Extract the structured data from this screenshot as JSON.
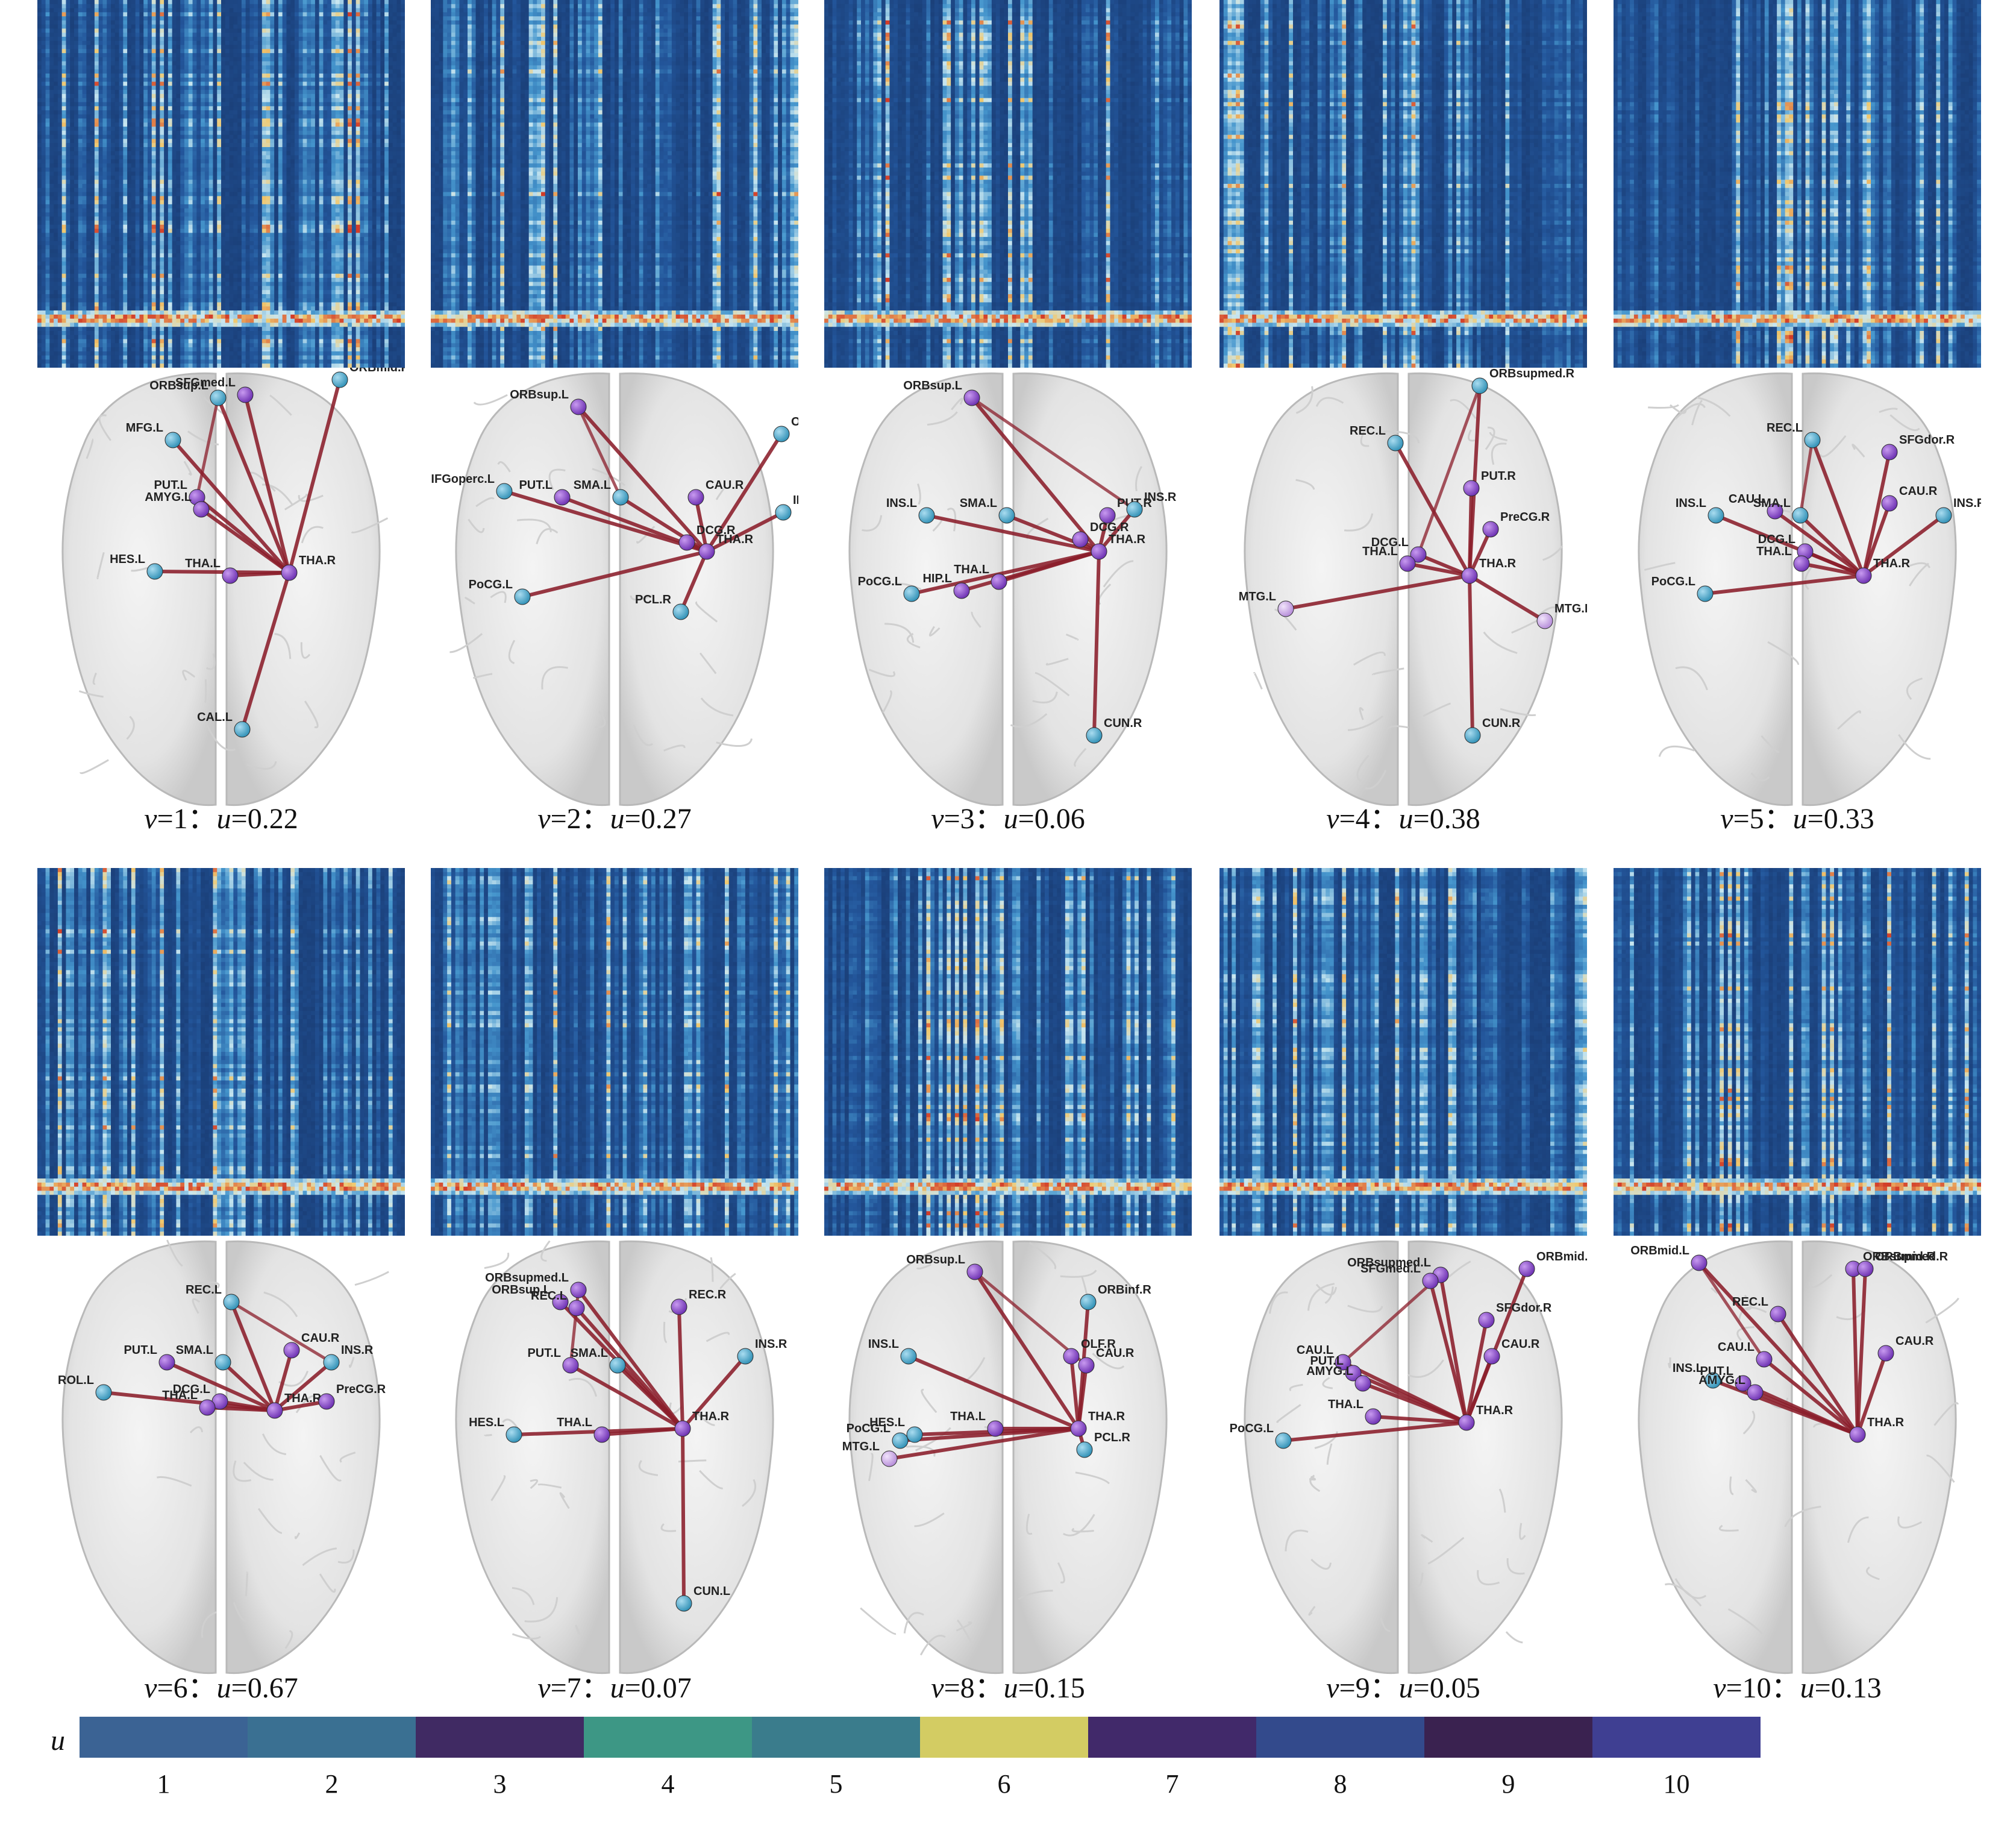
{
  "panels": [
    {
      "id": "v1",
      "caption": {
        "v_symbol": "v",
        "v_value": "=1",
        "separator": "：",
        "u_symbol": "u",
        "u_value": "=0.22"
      },
      "nodes": [
        {
          "label": "ORBsup.L",
          "kind": "blue"
        },
        {
          "label": "SFGmed.L",
          "kind": "purple"
        },
        {
          "label": "ORBmid.R",
          "kind": "blue"
        },
        {
          "label": "MFG.L",
          "kind": "blue"
        },
        {
          "label": "PUT.L",
          "kind": "purple"
        },
        {
          "label": "AMYG.L",
          "kind": "purple"
        },
        {
          "label": "HES.L",
          "kind": "blue"
        },
        {
          "label": "THA.L",
          "kind": "purple"
        },
        {
          "label": "THA.R",
          "kind": "purple"
        },
        {
          "label": "CAL.L",
          "kind": "blue"
        }
      ],
      "hub": "THA.R"
    },
    {
      "id": "v2",
      "caption": {
        "v_symbol": "v",
        "v_value": "=2",
        "separator": "：",
        "u_symbol": "u",
        "u_value": "=0.27"
      },
      "nodes": [
        {
          "label": "ORBsup.L",
          "kind": "purple"
        },
        {
          "label": "ORBinf.R",
          "kind": "blue"
        },
        {
          "label": "IFGoperc.L",
          "kind": "blue"
        },
        {
          "label": "PUT.L",
          "kind": "purple"
        },
        {
          "label": "SMA.L",
          "kind": "blue"
        },
        {
          "label": "CAU.R",
          "kind": "purple"
        },
        {
          "label": "INS.R",
          "kind": "blue"
        },
        {
          "label": "DCG.R",
          "kind": "purple"
        },
        {
          "label": "THA.R",
          "kind": "purple"
        },
        {
          "label": "PoCG.L",
          "kind": "blue"
        },
        {
          "label": "PCL.R",
          "kind": "blue"
        }
      ],
      "hub": "THA.R"
    },
    {
      "id": "v3",
      "caption": {
        "v_symbol": "v",
        "v_value": "=3",
        "separator": "：",
        "u_symbol": "u",
        "u_value": "=0.06"
      },
      "nodes": [
        {
          "label": "ORBsup.L",
          "kind": "purple"
        },
        {
          "label": "INS.L",
          "kind": "blue"
        },
        {
          "label": "SMA.L",
          "kind": "blue"
        },
        {
          "label": "PUT.R",
          "kind": "purple"
        },
        {
          "label": "INS.R",
          "kind": "blue"
        },
        {
          "label": "DCG.R",
          "kind": "purple"
        },
        {
          "label": "THA.R",
          "kind": "purple"
        },
        {
          "label": "PoCG.L",
          "kind": "blue"
        },
        {
          "label": "HIP.L",
          "kind": "purple"
        },
        {
          "label": "THA.L",
          "kind": "purple"
        },
        {
          "label": "CUN.R",
          "kind": "blue"
        }
      ],
      "hub": "THA.R"
    },
    {
      "id": "v4",
      "caption": {
        "v_symbol": "v",
        "v_value": "=4",
        "separator": "：",
        "u_symbol": "u",
        "u_value": "=0.38"
      },
      "nodes": [
        {
          "label": "ORBsupmed.R",
          "kind": "blue"
        },
        {
          "label": "REC.L",
          "kind": "blue"
        },
        {
          "label": "PUT.R",
          "kind": "purple"
        },
        {
          "label": "PreCG.R",
          "kind": "purple"
        },
        {
          "label": "DCG.L",
          "kind": "purple"
        },
        {
          "label": "THA.L",
          "kind": "purple"
        },
        {
          "label": "THA.R",
          "kind": "purple"
        },
        {
          "label": "MTG.L",
          "kind": "lilac"
        },
        {
          "label": "MTG.R",
          "kind": "lilac"
        },
        {
          "label": "CUN.R",
          "kind": "blue"
        }
      ],
      "hub": "THA.R"
    },
    {
      "id": "v5",
      "caption": {
        "v_symbol": "v",
        "v_value": "=5",
        "separator": "：",
        "u_symbol": "u",
        "u_value": "=0.33"
      },
      "nodes": [
        {
          "label": "REC.L",
          "kind": "blue"
        },
        {
          "label": "SFGdor.R",
          "kind": "purple"
        },
        {
          "label": "INS.L",
          "kind": "blue"
        },
        {
          "label": "CAU.L",
          "kind": "purple"
        },
        {
          "label": "SMA.L",
          "kind": "blue"
        },
        {
          "label": "CAU.R",
          "kind": "purple"
        },
        {
          "label": "INS.R",
          "kind": "blue"
        },
        {
          "label": "DCG.L",
          "kind": "purple"
        },
        {
          "label": "THA.L",
          "kind": "purple"
        },
        {
          "label": "THA.R",
          "kind": "purple"
        },
        {
          "label": "PoCG.L",
          "kind": "blue"
        }
      ],
      "hub": "THA.R"
    },
    {
      "id": "v6",
      "caption": {
        "v_symbol": "v",
        "v_value": "=6",
        "separator": "：",
        "u_symbol": "u",
        "u_value": "=0.67"
      },
      "nodes": [
        {
          "label": "REC.L",
          "kind": "blue"
        },
        {
          "label": "PUT.L",
          "kind": "purple"
        },
        {
          "label": "SMA.L",
          "kind": "blue"
        },
        {
          "label": "CAU.R",
          "kind": "purple"
        },
        {
          "label": "INS.R",
          "kind": "blue"
        },
        {
          "label": "ROL.L",
          "kind": "blue"
        },
        {
          "label": "DCG.L",
          "kind": "purple"
        },
        {
          "label": "THA.L",
          "kind": "purple"
        },
        {
          "label": "THA.R",
          "kind": "purple"
        },
        {
          "label": "PreCG.R",
          "kind": "purple"
        }
      ],
      "hub": "THA.R"
    },
    {
      "id": "v7",
      "caption": {
        "v_symbol": "v",
        "v_value": "=7",
        "separator": "：",
        "u_symbol": "u",
        "u_value": "=0.07"
      },
      "nodes": [
        {
          "label": "ORBsupmed.L",
          "kind": "purple"
        },
        {
          "label": "ORBsup.L",
          "kind": "purple"
        },
        {
          "label": "REC.L",
          "kind": "purple"
        },
        {
          "label": "REC.R",
          "kind": "purple"
        },
        {
          "label": "PUT.L",
          "kind": "purple"
        },
        {
          "label": "SMA.L",
          "kind": "blue"
        },
        {
          "label": "INS.R",
          "kind": "blue"
        },
        {
          "label": "HES.L",
          "kind": "blue"
        },
        {
          "label": "THA.L",
          "kind": "purple"
        },
        {
          "label": "THA.R",
          "kind": "purple"
        },
        {
          "label": "CUN.L",
          "kind": "blue"
        }
      ],
      "hub": "THA.R"
    },
    {
      "id": "v8",
      "caption": {
        "v_symbol": "v",
        "v_value": "=8",
        "separator": "：",
        "u_symbol": "u",
        "u_value": "=0.15"
      },
      "nodes": [
        {
          "label": "ORBsup.L",
          "kind": "purple"
        },
        {
          "label": "ORBinf.R",
          "kind": "blue"
        },
        {
          "label": "INS.L",
          "kind": "blue"
        },
        {
          "label": "OLF.R",
          "kind": "purple"
        },
        {
          "label": "CAU.R",
          "kind": "purple"
        },
        {
          "label": "HES.L",
          "kind": "blue"
        },
        {
          "label": "PoCG.L",
          "kind": "blue"
        },
        {
          "label": "THA.L",
          "kind": "purple"
        },
        {
          "label": "THA.R",
          "kind": "purple"
        },
        {
          "label": "PCL.R",
          "kind": "blue"
        },
        {
          "label": "MTG.L",
          "kind": "lilac"
        }
      ],
      "hub": "THA.R"
    },
    {
      "id": "v9",
      "caption": {
        "v_symbol": "v",
        "v_value": "=9",
        "separator": "：",
        "u_symbol": "u",
        "u_value": "=0.05"
      },
      "nodes": [
        {
          "label": "ORBsupmed.L",
          "kind": "purple"
        },
        {
          "label": "SFGmed.L",
          "kind": "purple"
        },
        {
          "label": "ORBmid.R",
          "kind": "purple"
        },
        {
          "label": "SFGdor.R",
          "kind": "purple"
        },
        {
          "label": "CAU.L",
          "kind": "purple"
        },
        {
          "label": "CAU.R",
          "kind": "purple"
        },
        {
          "label": "PUT.L",
          "kind": "purple"
        },
        {
          "label": "AMYG.L",
          "kind": "purple"
        },
        {
          "label": "THA.L",
          "kind": "purple"
        },
        {
          "label": "THA.R",
          "kind": "purple"
        },
        {
          "label": "PoCG.L",
          "kind": "blue"
        }
      ],
      "hub": "THA.R"
    },
    {
      "id": "v10",
      "caption": {
        "v_symbol": "v",
        "v_value": "=10",
        "separator": "：",
        "u_symbol": "u",
        "u_value": "=0.13"
      },
      "nodes": [
        {
          "label": "ORBmid.L",
          "kind": "purple"
        },
        {
          "label": "ORBsupmed.R",
          "kind": "purple"
        },
        {
          "label": "ORBmid.R",
          "kind": "purple"
        },
        {
          "label": "REC.L",
          "kind": "purple"
        },
        {
          "label": "CAU.L",
          "kind": "purple"
        },
        {
          "label": "CAU.R",
          "kind": "purple"
        },
        {
          "label": "INS.L",
          "kind": "blue"
        },
        {
          "label": "PUT.L",
          "kind": "purple"
        },
        {
          "label": "AMYG.L",
          "kind": "purple"
        },
        {
          "label": "THA.R",
          "kind": "purple"
        }
      ],
      "hub": "THA.R"
    }
  ],
  "colorbar": {
    "title": "u",
    "ticks": [
      "1",
      "2",
      "3",
      "4",
      "5",
      "6",
      "7",
      "8",
      "9",
      "10"
    ],
    "colors": [
      "#3b6394",
      "#3a7092",
      "#402a63",
      "#3d9785",
      "#3a7c8c",
      "#d3cc63",
      "#41296a",
      "#334a8c",
      "#3a2250",
      "#3f3f92"
    ]
  },
  "node_colors": {
    "blue": "#3f9ec0",
    "purple": "#7a3fc0",
    "lilac": "#c9a8e4",
    "edge": "#8b1e2b"
  }
}
